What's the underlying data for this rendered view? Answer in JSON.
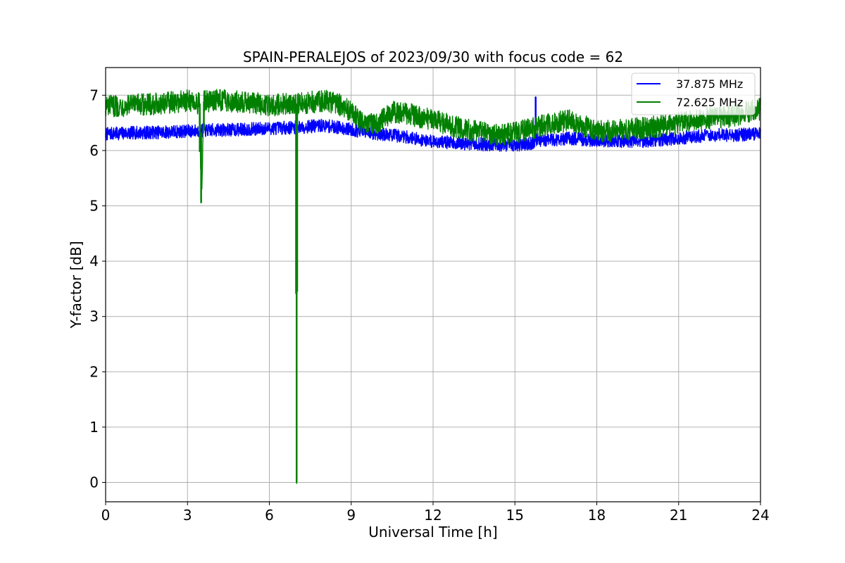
{
  "chart_data": {
    "type": "line",
    "title": "SPAIN-PERALEJOS of 2023/09/30 with focus code = 62",
    "xlabel": "Universal Time [h]",
    "ylabel": "Y-factor [dB]",
    "xlim": [
      0,
      24
    ],
    "ylim": [
      -0.35,
      7.5
    ],
    "xticks": [
      0,
      3,
      6,
      9,
      12,
      15,
      18,
      21,
      24
    ],
    "yticks": [
      0,
      1,
      2,
      3,
      4,
      5,
      6,
      7
    ],
    "grid": true,
    "legend_position": "top-right",
    "series": [
      {
        "name": "37.875 MHz",
        "color": "#0000ff",
        "noise_amplitude": 0.12,
        "x": [
          0,
          1,
          2,
          3,
          4,
          5,
          6,
          7,
          8,
          8.5,
          9,
          9.5,
          10,
          10.5,
          11,
          11.5,
          12,
          12.5,
          13,
          13.5,
          14,
          14.5,
          15,
          15.5,
          15.75,
          15.76,
          15.77,
          16,
          16.5,
          17,
          17.5,
          18,
          18.5,
          19,
          19.5,
          20,
          20.5,
          21,
          21.5,
          22,
          22.5,
          23,
          23.5,
          24
        ],
        "y": [
          6.3,
          6.32,
          6.33,
          6.35,
          6.37,
          6.38,
          6.4,
          6.42,
          6.45,
          6.42,
          6.38,
          6.33,
          6.3,
          6.28,
          6.25,
          6.2,
          6.17,
          6.15,
          6.13,
          6.12,
          6.11,
          6.1,
          6.1,
          6.12,
          6.15,
          6.97,
          6.2,
          6.18,
          6.2,
          6.22,
          6.2,
          6.18,
          6.18,
          6.17,
          6.17,
          6.18,
          6.2,
          6.22,
          6.25,
          6.27,
          6.28,
          6.28,
          6.29,
          6.3
        ]
      },
      {
        "name": "72.625 MHz",
        "color": "#008000",
        "noise_amplitude": 0.2,
        "x": [
          0,
          1,
          2,
          3,
          3.45,
          3.5,
          3.55,
          3.6,
          4,
          5,
          6,
          6.98,
          7.0,
          7.02,
          8,
          8.5,
          9,
          9.5,
          10,
          10.5,
          11,
          11.5,
          12,
          12.5,
          13,
          13.5,
          14,
          14.5,
          15,
          15.5,
          16,
          16.5,
          17,
          17.5,
          18,
          18.5,
          19,
          19.5,
          20,
          20.5,
          21,
          21.5,
          22,
          22.5,
          23,
          23.5,
          24
        ],
        "y": [
          6.8,
          6.82,
          6.85,
          6.9,
          6.85,
          5.05,
          5.8,
          6.88,
          6.92,
          6.88,
          6.82,
          6.85,
          0.0,
          6.85,
          6.9,
          6.85,
          6.7,
          6.45,
          6.5,
          6.7,
          6.68,
          6.6,
          6.55,
          6.48,
          6.4,
          6.35,
          6.3,
          6.28,
          6.32,
          6.38,
          6.45,
          6.5,
          6.55,
          6.45,
          6.35,
          6.35,
          6.38,
          6.4,
          6.42,
          6.45,
          6.5,
          6.55,
          6.58,
          6.6,
          6.62,
          6.7,
          6.75
        ]
      }
    ]
  }
}
